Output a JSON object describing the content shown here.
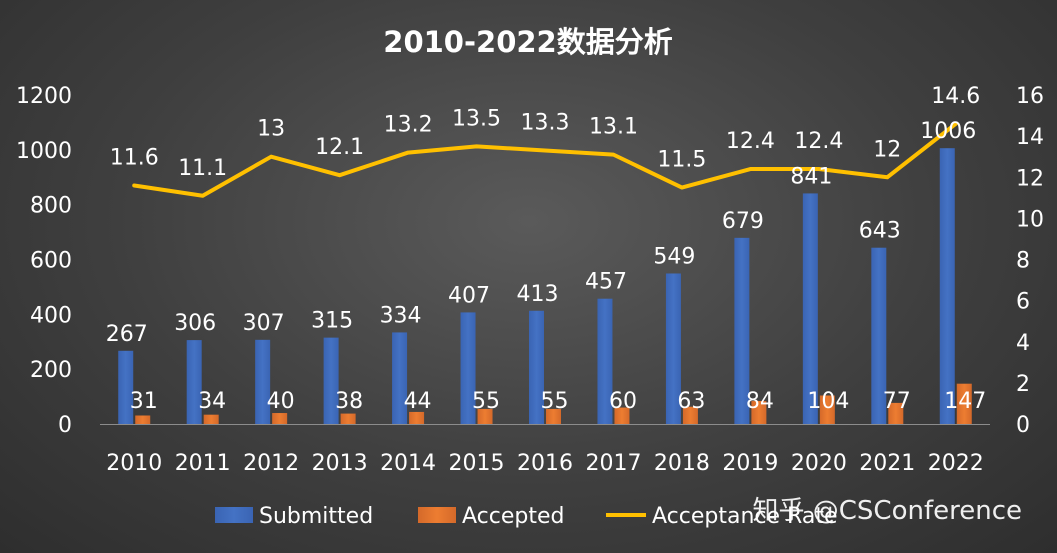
{
  "chart_data": {
    "type": "bar",
    "title": "2010-2022数据分析",
    "categories": [
      "2010",
      "2011",
      "2012",
      "2013",
      "2014",
      "2015",
      "2016",
      "2017",
      "2018",
      "2019",
      "2020",
      "2021",
      "2022"
    ],
    "series": [
      {
        "name": "Submitted",
        "type": "bar",
        "axis": "left",
        "color": "#4472C4",
        "values": [
          267,
          306,
          307,
          315,
          334,
          407,
          413,
          457,
          549,
          679,
          841,
          643,
          1006
        ]
      },
      {
        "name": "Accepted",
        "type": "bar",
        "axis": "left",
        "color": "#ED7D31",
        "values": [
          31,
          34,
          40,
          38,
          44,
          55,
          55,
          60,
          63,
          84,
          104,
          77,
          147
        ]
      },
      {
        "name": "Acceptance Rate",
        "type": "line",
        "axis": "right",
        "color": "#FFC000",
        "values": [
          11.6,
          11.1,
          13,
          12.1,
          13.2,
          13.5,
          13.3,
          13.1,
          11.5,
          12.4,
          12.4,
          12,
          14.6
        ]
      }
    ],
    "y_left": {
      "ylim": [
        0,
        1200
      ],
      "ticks": [
        "0",
        "200",
        "400",
        "600",
        "800",
        "1000",
        "1200"
      ]
    },
    "y_right": {
      "ylim": [
        0,
        16
      ],
      "ticks": [
        "0",
        "2",
        "4",
        "6",
        "8",
        "10",
        "12",
        "14",
        "16"
      ]
    },
    "grid": false,
    "legend": "bottom"
  },
  "watermark": "知乎 @CSConference"
}
